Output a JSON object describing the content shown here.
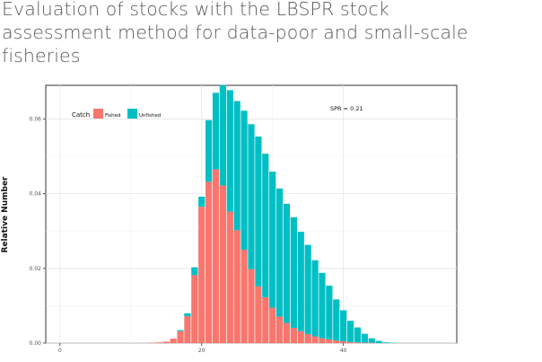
{
  "heading": {
    "line1": "Evaluation of stocks with the LBSPR stock",
    "line2": "assessment method for data-poor and small-scale",
    "line3": "fisheries"
  },
  "chart_data": {
    "type": "bar",
    "stacked": true,
    "title": "",
    "xlabel": "",
    "ylabel": "Relative Number",
    "annotation": "SPR = 0.21",
    "legend": {
      "title": "Catch",
      "position": "top-left",
      "entries": [
        "Fished",
        "Unfished"
      ]
    },
    "xlim": [
      -2,
      56
    ],
    "ylim": [
      0,
      0.069
    ],
    "xticks": [
      0,
      20,
      40
    ],
    "yticks": [
      0.0,
      0.02,
      0.04,
      0.06
    ],
    "xtick_labels": [
      "0",
      "20",
      "40"
    ],
    "ytick_labels": [
      "0.00",
      "0.02",
      "0.04",
      "0.06"
    ],
    "grid": true,
    "bin_width": 1,
    "x": [
      13,
      14,
      15,
      16,
      17,
      18,
      19,
      20,
      21,
      22,
      23,
      24,
      25,
      26,
      27,
      28,
      29,
      30,
      31,
      32,
      33,
      34,
      35,
      36,
      37,
      38,
      39,
      40,
      41,
      42,
      43,
      44,
      45,
      46,
      47
    ],
    "series": [
      {
        "name": "Fished",
        "color": "#f8766d",
        "values": [
          0.0001,
          0.0002,
          0.0004,
          0.0012,
          0.0032,
          0.0072,
          0.0182,
          0.0365,
          0.0432,
          0.0465,
          0.0422,
          0.0352,
          0.0302,
          0.025,
          0.0198,
          0.0152,
          0.0123,
          0.0095,
          0.0071,
          0.0054,
          0.0041,
          0.0032,
          0.0024,
          0.0018,
          0.0013,
          0.001,
          0.0007,
          0.0005,
          0.0003,
          0.0002,
          0.0001,
          0.0001,
          0.0,
          0.0,
          0.0
        ]
      },
      {
        "name": "Unfished",
        "color": "#00bfc4",
        "values": [
          0.0,
          0.0,
          0.0,
          0.0,
          0.0003,
          0.0008,
          0.0021,
          0.0027,
          0.0165,
          0.0205,
          0.0269,
          0.0325,
          0.0346,
          0.0372,
          0.0388,
          0.0401,
          0.0384,
          0.0364,
          0.0343,
          0.0319,
          0.0296,
          0.0266,
          0.0239,
          0.0204,
          0.0175,
          0.0144,
          0.011,
          0.0083,
          0.0057,
          0.004,
          0.0024,
          0.0012,
          0.0006,
          0.0002,
          0.0001
        ]
      }
    ]
  }
}
